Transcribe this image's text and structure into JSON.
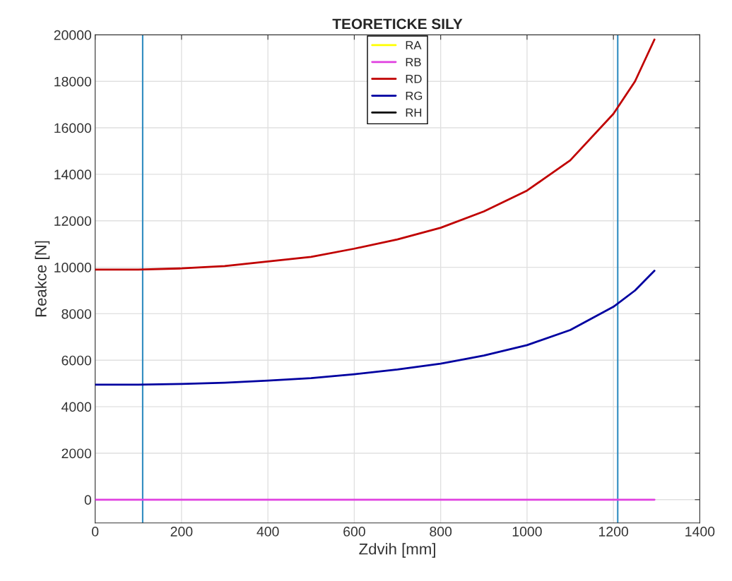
{
  "chart_data": {
    "type": "line",
    "title": "TEORETICKE SILY",
    "xlabel": "Zdvih [mm]",
    "ylabel": "Reakce [N]",
    "xlim": [
      0,
      1400
    ],
    "xticks": [
      0,
      200,
      400,
      600,
      800,
      1000,
      1200,
      1400
    ],
    "ylim": [
      -1000,
      20000
    ],
    "yticks": [
      0,
      2000,
      4000,
      6000,
      8000,
      10000,
      12000,
      14000,
      16000,
      18000,
      20000
    ],
    "grid": true,
    "legend": "top",
    "line_style": "solid",
    "marker": "none",
    "series": [
      {
        "name": "RA",
        "color": "#ffff00"
      },
      {
        "name": "RB",
        "color": "#e040e0",
        "x": [
          0,
          1295
        ],
        "values": [
          0,
          0
        ]
      },
      {
        "name": "RD",
        "color": "#c00000",
        "x": [
          0,
          100,
          200,
          300,
          400,
          500,
          600,
          700,
          800,
          900,
          1000,
          1100,
          1200,
          1250,
          1295
        ],
        "values": [
          9900,
          9900,
          9950,
          10050,
          10250,
          10450,
          10800,
          11200,
          11700,
          12400,
          13300,
          14600,
          16600,
          18000,
          19800
        ]
      },
      {
        "name": "RG",
        "color": "#0000a0",
        "x": [
          0,
          100,
          200,
          300,
          400,
          500,
          600,
          700,
          800,
          900,
          1000,
          1100,
          1200,
          1250,
          1295
        ],
        "values": [
          4950,
          4950,
          4980,
          5030,
          5120,
          5230,
          5400,
          5600,
          5850,
          6200,
          6650,
          7300,
          8300,
          9000,
          9850
        ]
      },
      {
        "name": "RH",
        "color": "#000000"
      }
    ],
    "ref_lines": [
      {
        "axis": "x",
        "value": 110,
        "color": "#2e8bc0"
      },
      {
        "axis": "x",
        "value": 1210,
        "color": "#2e8bc0"
      }
    ]
  }
}
